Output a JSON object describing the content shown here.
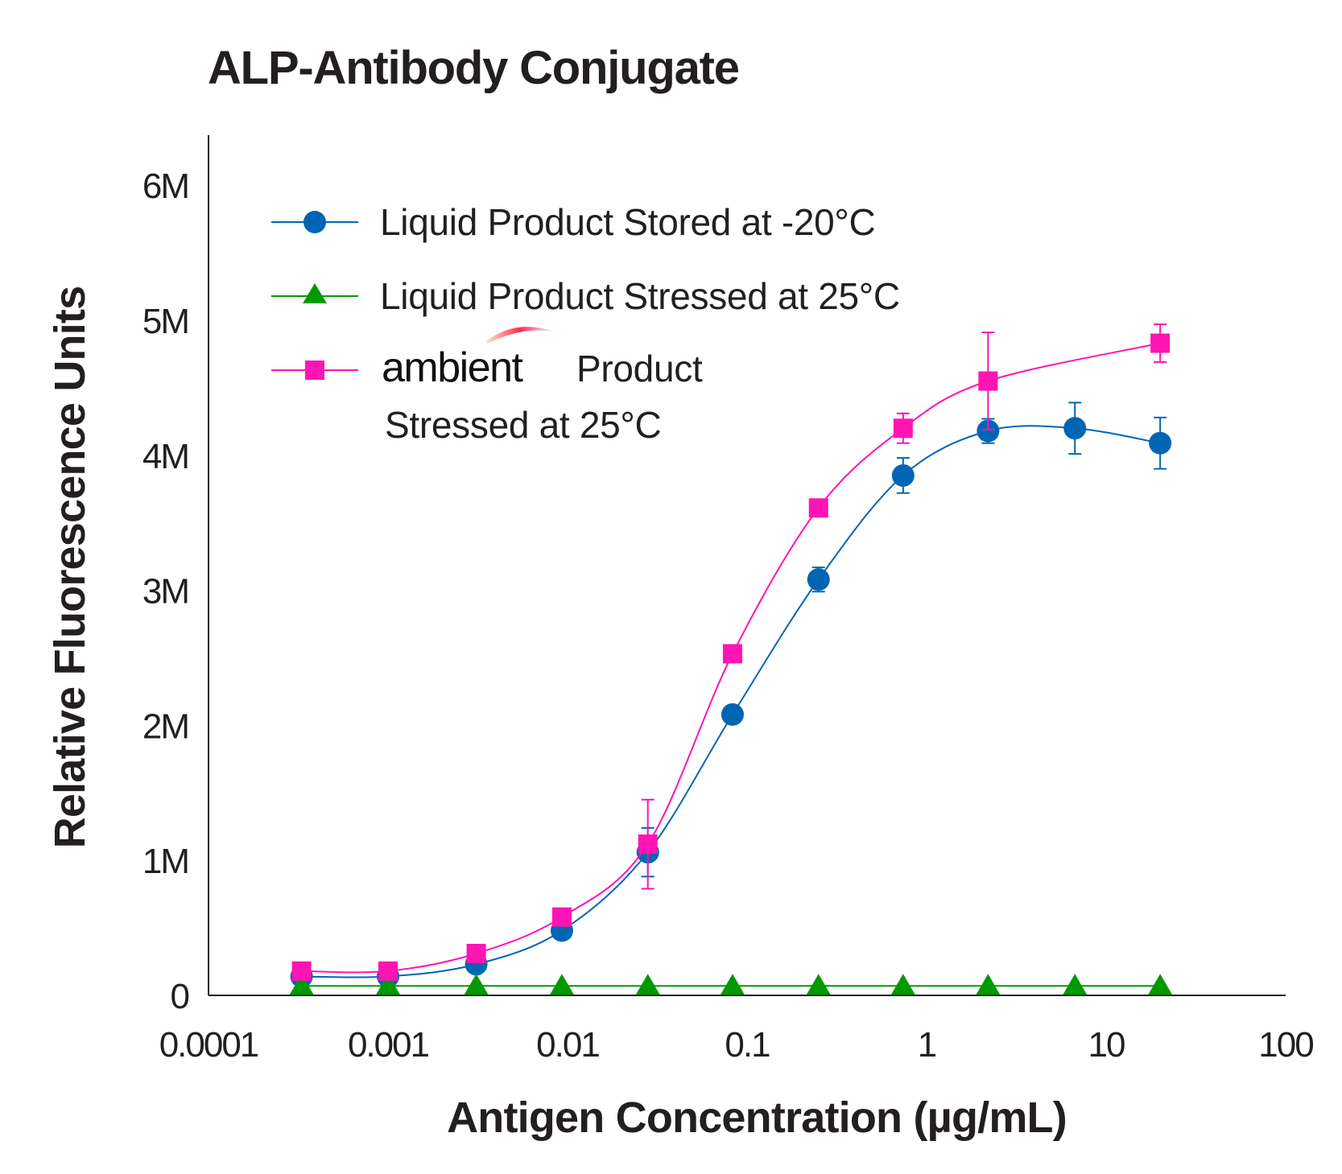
{
  "chart_data": {
    "type": "line",
    "title": "ALP-Antibody Conjugate",
    "xlabel": "Antigen Concentration (µg/mL)",
    "ylabel": "Relative Fluorescence Units",
    "xscale": "log",
    "xlim": [
      0.0001,
      100
    ],
    "ylim": [
      0,
      6400000
    ],
    "x_ticks": [
      0.0001,
      0.001,
      0.01,
      0.1,
      1,
      10,
      100
    ],
    "x_tick_labels": [
      "0.0001",
      "0.001",
      "0.01",
      "0.1",
      "1",
      "10",
      "100"
    ],
    "y_ticks": [
      0,
      1000000,
      2000000,
      3000000,
      4000000,
      5000000,
      6000000
    ],
    "y_tick_labels": [
      "0",
      "1M",
      "2M",
      "3M",
      "4M",
      "5M",
      "6M"
    ],
    "legend_position": "top-left",
    "grid": false,
    "series": [
      {
        "name": "Liquid Product Stored at -20°C",
        "color": "#0066b3",
        "marker": "circle",
        "x": [
          0.00033,
          0.001,
          0.0031,
          0.0093,
          0.028,
          0.083,
          0.25,
          0.74,
          2.2,
          6.7,
          20
        ],
        "y": [
          140000,
          140000,
          230000,
          480000,
          1060000,
          2080000,
          3080000,
          3850000,
          4180000,
          4200000,
          4090000
        ],
        "error": [
          0,
          0,
          0,
          0,
          180000,
          0,
          90000,
          130000,
          90000,
          190000,
          190000
        ]
      },
      {
        "name": "Liquid Product Stressed at 25°C",
        "color": "#009a00",
        "marker": "triangle",
        "x": [
          0.00033,
          0.001,
          0.0031,
          0.0093,
          0.028,
          0.083,
          0.25,
          0.74,
          2.2,
          6.7,
          20
        ],
        "y": [
          70000,
          70000,
          70000,
          70000,
          70000,
          70000,
          70000,
          70000,
          70000,
          70000,
          70000
        ],
        "error": [
          0,
          0,
          0,
          0,
          0,
          0,
          0,
          0,
          0,
          0,
          0
        ]
      },
      {
        "name": "ambient Product Stressed at 25°C",
        "color": "#ff14b4",
        "marker": "square",
        "x": [
          0.00033,
          0.001,
          0.0031,
          0.0093,
          0.028,
          0.083,
          0.25,
          0.74,
          2.2,
          20
        ],
        "y": [
          180000,
          180000,
          310000,
          580000,
          1120000,
          2530000,
          3610000,
          4200000,
          4550000,
          4830000
        ],
        "error": [
          0,
          0,
          0,
          0,
          330000,
          0,
          0,
          110000,
          360000,
          140000
        ]
      }
    ],
    "legend": {
      "brand_word": "ambient",
      "brand_suffix": "Product",
      "brand_line2": "Stressed at 25°C"
    }
  }
}
